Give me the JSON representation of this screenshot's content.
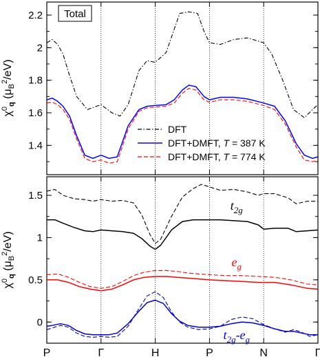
{
  "colors": {
    "dft": "#000000",
    "t387": "#0000ff",
    "t774": "#ff0000",
    "t2g_minus_eg": "#0000cc",
    "eg": "#ff0000"
  },
  "chart_data": [
    {
      "type": "line",
      "panel": "top",
      "title": "",
      "panel_label": "Total",
      "ylabel": "χ⁰_q (μ_B²/eV)",
      "ylim": [
        1.22,
        2.28
      ],
      "yticks": [
        1.4,
        1.6,
        1.8,
        2.0,
        2.2
      ],
      "ytick_labels": [
        "1.4",
        "1.6",
        "1.8",
        "2",
        "2.2"
      ],
      "xlim": [
        0,
        5
      ],
      "xticks": [
        0,
        1,
        2,
        3,
        4,
        5
      ],
      "xtick_labels": [
        "P",
        "Γ",
        "H",
        "P",
        "N",
        "Γ"
      ],
      "vlines": [
        1,
        2,
        3,
        4
      ],
      "grid": false,
      "legend_position": "lower-center",
      "series": [
        {
          "name": "DFT",
          "key": "dft",
          "style": "dashdot",
          "x": [
            0,
            0.1,
            0.2,
            0.3,
            0.4,
            0.55,
            0.75,
            1.0,
            1.2,
            1.35,
            1.5,
            1.7,
            1.85,
            2.0,
            2.2,
            2.45,
            2.62,
            2.78,
            2.9,
            3.0,
            3.2,
            3.45,
            3.7,
            3.9,
            4.0,
            4.15,
            4.35,
            4.55,
            4.75,
            4.9,
            5.0
          ],
          "y": [
            2.03,
            2.05,
            2.02,
            1.96,
            1.85,
            1.7,
            1.62,
            1.65,
            1.6,
            1.58,
            1.65,
            1.86,
            1.92,
            1.91,
            1.97,
            2.21,
            2.22,
            2.21,
            2.1,
            2.03,
            2.02,
            2.05,
            2.06,
            2.04,
            2.03,
            1.96,
            1.8,
            1.62,
            1.57,
            1.62,
            1.65
          ]
        },
        {
          "name": "DFT+DMFT, T = 387 K",
          "key": "t387",
          "style": "solid",
          "x": [
            0,
            0.1,
            0.2,
            0.3,
            0.42,
            0.55,
            0.7,
            0.85,
            1.0,
            1.15,
            1.3,
            1.5,
            1.7,
            1.85,
            2.0,
            2.2,
            2.35,
            2.5,
            2.62,
            2.75,
            2.9,
            3.0,
            3.2,
            3.45,
            3.7,
            4.0,
            4.2,
            4.4,
            4.6,
            4.75,
            4.9,
            5.0
          ],
          "y": [
            1.68,
            1.69,
            1.67,
            1.64,
            1.58,
            1.46,
            1.34,
            1.32,
            1.34,
            1.32,
            1.33,
            1.52,
            1.62,
            1.64,
            1.645,
            1.65,
            1.68,
            1.74,
            1.77,
            1.76,
            1.7,
            1.68,
            1.695,
            1.695,
            1.685,
            1.66,
            1.64,
            1.55,
            1.41,
            1.34,
            1.32,
            1.33
          ]
        },
        {
          "name": "DFT+DMFT, T = 774 K",
          "key": "t774",
          "style": "dashed",
          "x": [
            0,
            0.1,
            0.2,
            0.3,
            0.42,
            0.55,
            0.7,
            0.85,
            1.0,
            1.15,
            1.3,
            1.5,
            1.7,
            1.85,
            2.0,
            2.2,
            2.35,
            2.5,
            2.62,
            2.75,
            2.9,
            3.0,
            3.2,
            3.45,
            3.7,
            4.0,
            4.2,
            4.4,
            4.6,
            4.75,
            4.9,
            5.0
          ],
          "y": [
            1.66,
            1.665,
            1.65,
            1.62,
            1.56,
            1.44,
            1.32,
            1.3,
            1.31,
            1.29,
            1.3,
            1.5,
            1.61,
            1.63,
            1.635,
            1.64,
            1.66,
            1.72,
            1.75,
            1.74,
            1.68,
            1.665,
            1.68,
            1.68,
            1.67,
            1.645,
            1.62,
            1.53,
            1.39,
            1.31,
            1.3,
            1.31
          ]
        }
      ]
    },
    {
      "type": "line",
      "panel": "bottom",
      "title": "",
      "ylabel": "χ⁰_q (μ_B²/eV)",
      "ylim": [
        -0.25,
        1.72
      ],
      "yticks": [
        0,
        0.5,
        1.0,
        1.5
      ],
      "ytick_labels": [
        "0",
        "0.5",
        "1",
        "1.5"
      ],
      "xlim": [
        0,
        5
      ],
      "xticks": [
        0,
        1,
        2,
        3,
        4,
        5
      ],
      "xtick_labels": [
        "P",
        "Γ",
        "H",
        "P",
        "N",
        "Γ"
      ],
      "vlines": [
        1,
        2,
        3,
        4
      ],
      "grid": false,
      "annotations": [
        {
          "text": "t",
          "sub": "2g",
          "key": "dft",
          "x": 3.5,
          "y": 1.33
        },
        {
          "text": "e",
          "sub": "g",
          "key": "eg",
          "x": 3.5,
          "y": 0.66
        },
        {
          "text": "t",
          "sub": "2g",
          "mid": "-e",
          "sub2": "g",
          "key": "t2g_minus_eg",
          "x": 3.5,
          "y": -0.2
        }
      ],
      "series": [
        {
          "key": "dft",
          "style": "dashed",
          "x": [
            0,
            0.15,
            0.3,
            0.5,
            0.7,
            0.85,
            1.0,
            1.2,
            1.4,
            1.6,
            1.75,
            1.9,
            2.0,
            2.1,
            2.3,
            2.5,
            2.7,
            2.85,
            3.0,
            3.2,
            3.45,
            3.7,
            3.9,
            4.0,
            4.2,
            4.45,
            4.6,
            4.8,
            5.0
          ],
          "y": [
            1.55,
            1.57,
            1.5,
            1.46,
            1.45,
            1.43,
            1.45,
            1.43,
            1.44,
            1.41,
            1.27,
            1.04,
            0.93,
            0.98,
            1.25,
            1.48,
            1.58,
            1.63,
            1.6,
            1.56,
            1.57,
            1.54,
            1.5,
            1.52,
            1.52,
            1.47,
            1.4,
            1.43,
            1.43
          ]
        },
        {
          "key": "dft",
          "style": "solid",
          "x": [
            0,
            0.15,
            0.3,
            0.5,
            0.7,
            0.85,
            1.0,
            1.2,
            1.4,
            1.6,
            1.75,
            1.9,
            2.0,
            2.1,
            2.3,
            2.5,
            2.7,
            2.85,
            3.0,
            3.2,
            3.45,
            3.7,
            3.9,
            4.0,
            4.2,
            4.45,
            4.6,
            4.8,
            5.0
          ],
          "y": [
            1.21,
            1.21,
            1.17,
            1.12,
            1.08,
            1.07,
            1.09,
            1.08,
            1.07,
            1.05,
            0.99,
            0.9,
            0.86,
            0.91,
            1.09,
            1.19,
            1.21,
            1.21,
            1.21,
            1.21,
            1.2,
            1.19,
            1.15,
            1.1,
            1.11,
            1.11,
            1.07,
            1.08,
            1.09
          ]
        },
        {
          "key": "eg",
          "style": "dashed",
          "x": [
            0,
            0.2,
            0.4,
            0.6,
            0.8,
            1.0,
            1.2,
            1.4,
            1.6,
            1.8,
            2.0,
            2.2,
            2.4,
            2.6,
            2.8,
            3.0,
            3.3,
            3.6,
            3.9,
            4.2,
            4.5,
            4.8,
            5.0
          ],
          "y": [
            0.56,
            0.57,
            0.53,
            0.47,
            0.42,
            0.4,
            0.42,
            0.48,
            0.55,
            0.59,
            0.61,
            0.61,
            0.6,
            0.58,
            0.57,
            0.56,
            0.55,
            0.55,
            0.54,
            0.53,
            0.5,
            0.45,
            0.44
          ]
        },
        {
          "key": "eg",
          "style": "solid",
          "x": [
            0,
            0.2,
            0.4,
            0.6,
            0.8,
            1.0,
            1.2,
            1.4,
            1.6,
            1.8,
            2.0,
            2.2,
            2.4,
            2.6,
            2.8,
            3.0,
            3.3,
            3.6,
            3.9,
            4.2,
            4.5,
            4.8,
            5.0
          ],
          "y": [
            0.5,
            0.5,
            0.47,
            0.42,
            0.39,
            0.37,
            0.39,
            0.44,
            0.5,
            0.53,
            0.54,
            0.54,
            0.53,
            0.52,
            0.51,
            0.5,
            0.49,
            0.48,
            0.47,
            0.47,
            0.44,
            0.4,
            0.39
          ]
        },
        {
          "key": "t2g_minus_eg",
          "style": "dashed",
          "x": [
            0,
            0.1,
            0.25,
            0.4,
            0.55,
            0.7,
            0.85,
            1.0,
            1.15,
            1.3,
            1.5,
            1.7,
            1.85,
            2.0,
            2.15,
            2.3,
            2.45,
            2.6,
            2.8,
            3.0,
            3.2,
            3.4,
            3.6,
            3.8,
            4.0,
            4.2,
            4.4,
            4.55,
            4.7,
            4.85,
            5.0
          ],
          "y": [
            -0.09,
            -0.07,
            -0.04,
            -0.06,
            -0.13,
            -0.17,
            -0.18,
            -0.17,
            -0.18,
            -0.17,
            -0.05,
            0.16,
            0.31,
            0.36,
            0.29,
            0.12,
            0.0,
            -0.06,
            -0.09,
            -0.08,
            -0.05,
            0.03,
            0.06,
            0.04,
            -0.03,
            -0.08,
            -0.12,
            -0.09,
            -0.12,
            -0.17,
            -0.15
          ]
        },
        {
          "key": "t2g_minus_eg",
          "style": "solid",
          "x": [
            0,
            0.1,
            0.25,
            0.4,
            0.55,
            0.7,
            0.85,
            1.0,
            1.15,
            1.3,
            1.5,
            1.7,
            1.85,
            2.0,
            2.15,
            2.3,
            2.45,
            2.6,
            2.8,
            3.0,
            3.2,
            3.4,
            3.6,
            3.8,
            4.0,
            4.2,
            4.4,
            4.55,
            4.7,
            4.85,
            5.0
          ],
          "y": [
            -0.05,
            -0.04,
            -0.02,
            -0.04,
            -0.1,
            -0.14,
            -0.15,
            -0.15,
            -0.15,
            -0.13,
            -0.02,
            0.13,
            0.23,
            0.26,
            0.22,
            0.1,
            0.01,
            -0.04,
            -0.06,
            -0.06,
            -0.05,
            -0.02,
            0.0,
            -0.01,
            -0.04,
            -0.08,
            -0.11,
            -0.11,
            -0.13,
            -0.15,
            -0.15
          ]
        }
      ]
    }
  ]
}
